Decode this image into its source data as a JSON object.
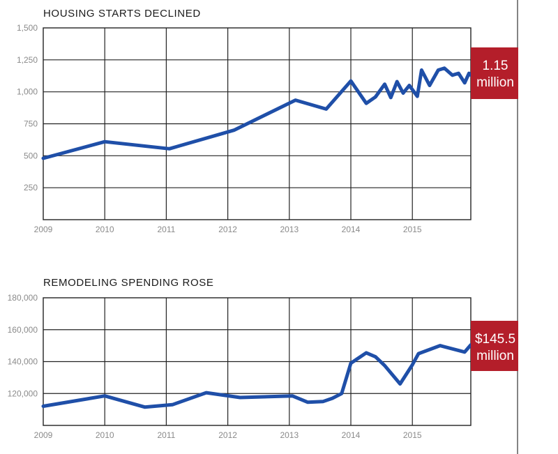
{
  "chart_data": [
    {
      "type": "line",
      "title": "HOUSING STARTS DECLINED",
      "xlabel": "",
      "ylabel": "",
      "x_ticks": [
        "2009",
        "2010",
        "2011",
        "2012",
        "2013",
        "2014",
        "2015"
      ],
      "y_ticks": [
        "1,500",
        "1,250",
        "1,000",
        "750",
        "500",
        "250"
      ],
      "ylim": [
        0,
        1500
      ],
      "xlim": [
        2009,
        2015.95
      ],
      "grid": true,
      "callout": [
        "1.15",
        "million"
      ],
      "series": [
        {
          "color": "#1f4fa8",
          "x": [
            2009.0,
            2010.0,
            2011.05,
            2012.1,
            2013.1,
            2013.6,
            2014.0,
            2014.25,
            2014.4,
            2014.55,
            2014.65,
            2014.75,
            2014.85,
            2014.95,
            2015.08,
            2015.15,
            2015.28,
            2015.42,
            2015.52,
            2015.65,
            2015.75,
            2015.85,
            2015.92,
            2015.95
          ],
          "y": [
            480,
            610,
            555,
            700,
            935,
            865,
            1085,
            910,
            960,
            1060,
            955,
            1080,
            990,
            1050,
            965,
            1170,
            1050,
            1170,
            1185,
            1130,
            1145,
            1070,
            1145,
            1130
          ]
        }
      ]
    },
    {
      "type": "line",
      "title": "REMODELING SPENDING ROSE",
      "xlabel": "",
      "ylabel": "",
      "x_ticks": [
        "2009",
        "2010",
        "2011",
        "2012",
        "2013",
        "2014",
        "2015"
      ],
      "y_ticks": [
        "180,000",
        "160,000",
        "140,000",
        "120,000"
      ],
      "ylim": [
        100000,
        180000
      ],
      "xlim": [
        2009,
        2015.95
      ],
      "grid": true,
      "callout": [
        "$145.5",
        "million"
      ],
      "series": [
        {
          "color": "#1f4fa8",
          "x": [
            2009.0,
            2010.0,
            2010.65,
            2011.1,
            2011.65,
            2012.2,
            2013.05,
            2013.3,
            2013.55,
            2013.7,
            2013.85,
            2014.0,
            2014.25,
            2014.4,
            2014.55,
            2014.8,
            2015.0,
            2015.1,
            2015.45,
            2015.85,
            2015.95
          ],
          "y": [
            112000,
            118500,
            111500,
            113000,
            120500,
            117500,
            118500,
            114500,
            115000,
            117000,
            120000,
            139000,
            145500,
            143000,
            137500,
            126000,
            138000,
            145000,
            150000,
            146000,
            150500
          ]
        }
      ]
    }
  ]
}
